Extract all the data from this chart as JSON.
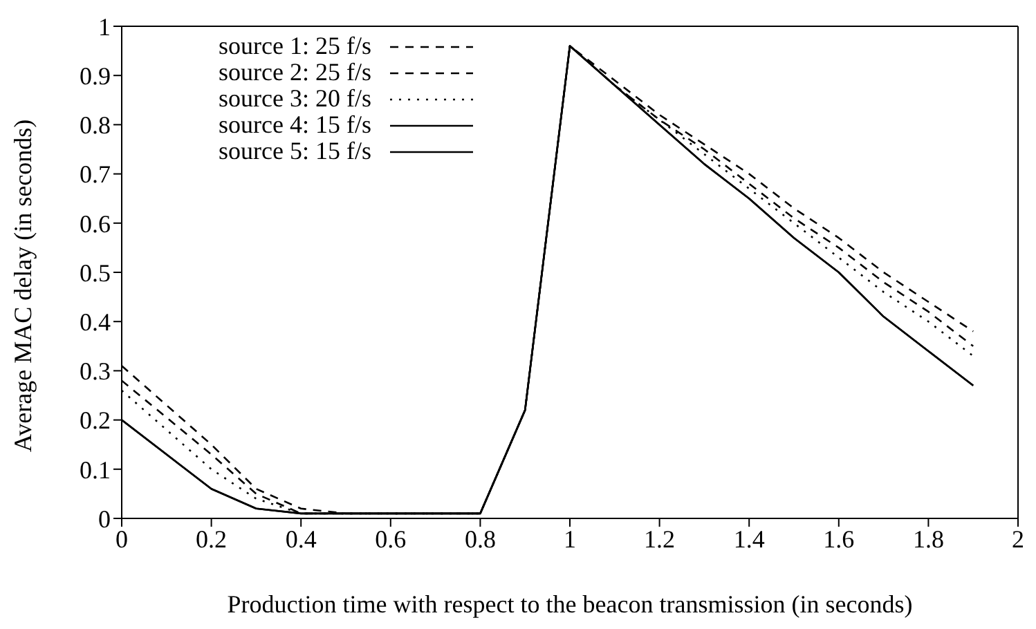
{
  "chart_data": {
    "type": "line",
    "xlabel": "Production time with respect to the beacon transmission (in seconds)",
    "ylabel": "Average MAC delay (in seconds)",
    "x": [
      0,
      0.2,
      0.3,
      0.4,
      0.5,
      0.6,
      0.7,
      0.8,
      0.9,
      1,
      1.1,
      1.2,
      1.3,
      1.4,
      1.5,
      1.6,
      1.7,
      1.8,
      1.9
    ],
    "series": [
      {
        "name": "source 1: 25 f/s",
        "color": "#000000",
        "line_style": "dashed",
        "values": [
          0.31,
          0.15,
          0.06,
          0.02,
          0.01,
          0.01,
          0.01,
          0.01,
          0.22,
          0.96,
          0.89,
          0.82,
          0.76,
          0.7,
          0.63,
          0.57,
          0.5,
          0.44,
          0.38
        ]
      },
      {
        "name": "source 2: 25 f/s",
        "color": "#000000",
        "line_style": "dashed",
        "values": [
          0.28,
          0.13,
          0.05,
          0.01,
          0.01,
          0.01,
          0.01,
          0.01,
          0.22,
          0.96,
          0.88,
          0.81,
          0.75,
          0.68,
          0.61,
          0.55,
          0.48,
          0.42,
          0.35
        ]
      },
      {
        "name": "source 3: 20 f/s",
        "color": "#000000",
        "line_style": "dotted",
        "values": [
          0.26,
          0.1,
          0.04,
          0.01,
          0.01,
          0.01,
          0.01,
          0.01,
          0.22,
          0.96,
          0.88,
          0.81,
          0.74,
          0.67,
          0.6,
          0.53,
          0.46,
          0.4,
          0.33
        ]
      },
      {
        "name": "source 4: 15 f/s",
        "color": "#000000",
        "line_style": "solid",
        "values": [
          0.2,
          0.06,
          0.02,
          0.01,
          0.01,
          0.01,
          0.01,
          0.01,
          0.22,
          0.96,
          0.88,
          0.8,
          0.72,
          0.65,
          0.57,
          0.5,
          0.41,
          0.34,
          0.27
        ]
      },
      {
        "name": "source 5: 15 f/s",
        "color": "#000000",
        "line_style": "solid",
        "values": [
          0.2,
          0.06,
          0.02,
          0.01,
          0.01,
          0.01,
          0.01,
          0.01,
          0.22,
          0.96,
          0.88,
          0.8,
          0.72,
          0.65,
          0.57,
          0.5,
          0.41,
          0.34,
          0.27
        ]
      }
    ],
    "xlim": [
      0,
      2
    ],
    "xticks": [
      0,
      0.2,
      0.4,
      0.6,
      0.8,
      1,
      1.2,
      1.4,
      1.6,
      1.8,
      2
    ],
    "ylim": [
      0,
      1
    ],
    "yticks": [
      0,
      0.1,
      0.2,
      0.3,
      0.4,
      0.5,
      0.6,
      0.7,
      0.8,
      0.9,
      1
    ],
    "grid": false,
    "legend": "top left",
    "marker": "none"
  }
}
